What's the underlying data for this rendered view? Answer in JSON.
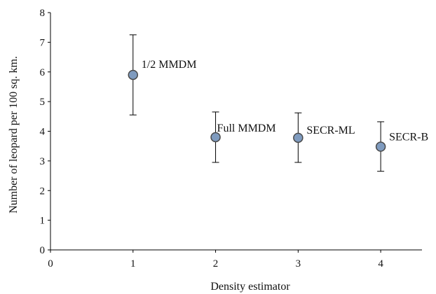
{
  "chart_data": {
    "type": "scatter",
    "xlabel": "Density estimator",
    "ylabel": "Number of leopard per 100 sq. km.",
    "xlim": [
      0,
      4.5
    ],
    "ylim": [
      0,
      8
    ],
    "x_ticks": [
      0,
      1,
      2,
      3,
      4
    ],
    "y_ticks": [
      0,
      1,
      2,
      3,
      4,
      5,
      6,
      7,
      8
    ],
    "grid": false,
    "point_color": "#7f9bbf",
    "point_stroke": "#4a4a4a",
    "points": [
      {
        "x": 1,
        "y": 5.9,
        "lower": 4.55,
        "upper": 7.25,
        "label": "1/2 MMDM"
      },
      {
        "x": 2,
        "y": 3.8,
        "lower": 2.95,
        "upper": 4.65,
        "label": "Full MMDM"
      },
      {
        "x": 3,
        "y": 3.78,
        "lower": 2.95,
        "upper": 4.62,
        "label": "SECR-ML"
      },
      {
        "x": 4,
        "y": 3.48,
        "lower": 2.65,
        "upper": 4.32,
        "label": "SECR-B"
      }
    ]
  }
}
